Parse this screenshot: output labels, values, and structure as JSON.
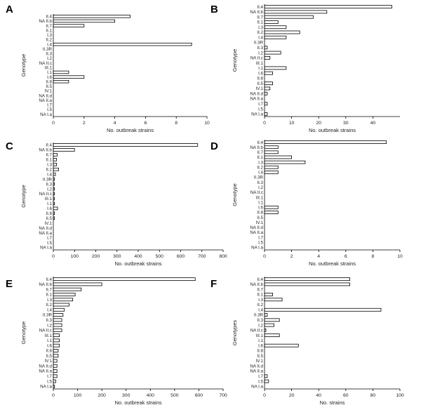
{
  "chart_data": [
    {
      "panel": "A",
      "type": "bar",
      "orientation": "horizontal",
      "categories": [
        "II.4",
        "NA II.b",
        "II.7",
        "II.1",
        "I.3",
        "II.2",
        "I.4",
        "II.3R",
        "II.3",
        "I.2",
        "NA II.c",
        "III.1",
        "I.1",
        "I.6",
        "II.8",
        "II.5",
        "IV.1",
        "NA II.d",
        "NA II.a",
        "I.7",
        "I.5",
        "NA I.a"
      ],
      "values": [
        5,
        4,
        2,
        0,
        0,
        0,
        9,
        0,
        0,
        0,
        0,
        0,
        1,
        2,
        1,
        0,
        0,
        0,
        0,
        0,
        0,
        0
      ],
      "xlabel": "No. outbreak strains",
      "ylabel": "Genotype",
      "xlim": [
        0,
        10
      ],
      "xticks": [
        "0",
        "2",
        "4",
        "6",
        "8",
        "10"
      ]
    },
    {
      "panel": "B",
      "type": "bar",
      "orientation": "horizontal",
      "categories": [
        "II.4",
        "NA II.b",
        "II.7",
        "II.1",
        "I.3",
        "II.2",
        "I.4",
        "II.3R",
        "II.3",
        "I.2",
        "NA II.c",
        "III.1",
        "I.1",
        "I.6",
        "II.8",
        "II.5",
        "IV.1",
        "NA II.d",
        "NA II.a",
        "I.7",
        "I.5",
        "NA I.a"
      ],
      "values": [
        47,
        23,
        18,
        5,
        8,
        13,
        8,
        0,
        1,
        6,
        2,
        0,
        8,
        3,
        0,
        3,
        2,
        1,
        0,
        1,
        0,
        1
      ],
      "xlabel": "No. outbreak strains",
      "ylabel": "Genotype",
      "xlim": [
        0,
        50
      ],
      "xticks": [
        "0",
        "10",
        "20",
        "30",
        "40"
      ]
    },
    {
      "panel": "C",
      "type": "bar",
      "orientation": "horizontal",
      "categories": [
        "II.4",
        "NA II.b",
        "II.7",
        "II.1",
        "I.3",
        "II.2",
        "I.4",
        "II.3R",
        "II.3",
        "I.2",
        "NA II.c",
        "III.1",
        "I.1",
        "I.6",
        "II.8",
        "II.5",
        "IV.1",
        "NA II.d",
        "NA II.a",
        "I.7",
        "I.5",
        "NA I.a"
      ],
      "values": [
        680,
        100,
        18,
        15,
        15,
        25,
        10,
        5,
        5,
        5,
        5,
        5,
        5,
        20,
        5,
        5,
        0,
        0,
        0,
        0,
        0,
        0
      ],
      "xlabel": "No. outbreak strains",
      "ylabel": "Genotype",
      "xlim": [
        0,
        800
      ],
      "xticks": [
        "0",
        "100",
        "200",
        "300",
        "400",
        "500",
        "600",
        "700",
        "800"
      ]
    },
    {
      "panel": "D",
      "type": "bar",
      "orientation": "horizontal",
      "categories": [
        "II.4",
        "NA II.b",
        "II.7",
        "II.1",
        "I.3",
        "II.2",
        "I.4",
        "II.3R",
        "II.3",
        "I.2",
        "NA II.c",
        "III.1",
        "I.1",
        "I.6",
        "II.8",
        "II.5",
        "IV.1",
        "NA II.d",
        "NA II.a",
        "I.7",
        "I.5",
        "NA I.a"
      ],
      "values": [
        9,
        1,
        1,
        2,
        3,
        1,
        1,
        0,
        0,
        0,
        0,
        0,
        0,
        1,
        1,
        0,
        0,
        0,
        0,
        0,
        0,
        0
      ],
      "xlabel": "No. outbreak strains",
      "ylabel": "Genotype",
      "xlim": [
        0,
        10
      ],
      "xticks": [
        "0",
        "2",
        "4",
        "6",
        "8",
        "10"
      ]
    },
    {
      "panel": "E",
      "type": "bar",
      "orientation": "horizontal",
      "categories": [
        "II.4",
        "NA II.b",
        "II.7",
        "II.1",
        "I.3",
        "II.2",
        "I.4",
        "II.3R",
        "II.3",
        "I.2",
        "NA II.c",
        "III.1",
        "I.1",
        "I.6",
        "II.8",
        "II.5",
        "IV.1",
        "NA II.d",
        "NA II.a",
        "I.7",
        "I.5",
        "NA I.a"
      ],
      "values": [
        585,
        200,
        115,
        90,
        80,
        65,
        45,
        40,
        35,
        35,
        35,
        25,
        25,
        25,
        20,
        20,
        15,
        15,
        15,
        15,
        10,
        5
      ],
      "xlabel": "No. outbreak strains",
      "ylabel": "Genotype",
      "xlim": [
        0,
        700
      ],
      "xticks": [
        "0",
        "100",
        "200",
        "300",
        "400",
        "500",
        "600",
        "700"
      ]
    },
    {
      "panel": "F",
      "type": "bar",
      "orientation": "horizontal",
      "categories": [
        "II.4",
        "NA II.b",
        "II.7",
        "II.1",
        "I.3",
        "II.2",
        "I.4",
        "II.3R",
        "II.3",
        "I.2",
        "NA II.c",
        "III.1",
        "I.1",
        "I.6",
        "II.8",
        "II.5",
        "IV.1",
        "NA II.d",
        "NA II.a",
        "I.7",
        "I.5",
        "NA I.a"
      ],
      "values": [
        63,
        63,
        0,
        6,
        13,
        0,
        86,
        2,
        11,
        7,
        1,
        11,
        0,
        25,
        0,
        0,
        0,
        0,
        0,
        2,
        3,
        0
      ],
      "xlabel": "No. strains",
      "ylabel": "Genotypes",
      "xlim": [
        0,
        100
      ],
      "xticks": [
        "0",
        "20",
        "40",
        "60",
        "80",
        "100"
      ]
    }
  ]
}
